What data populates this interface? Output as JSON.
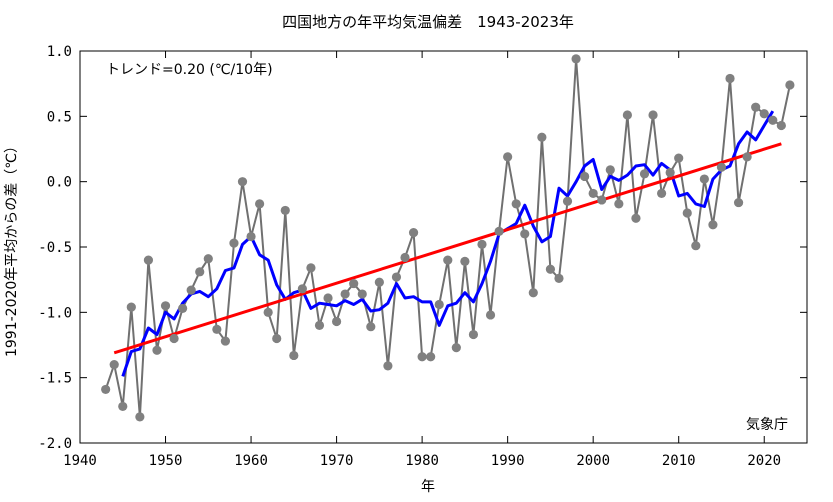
{
  "chart_data": {
    "type": "line",
    "title": "四国地方の年平均気温偏差　1943-2023年",
    "xlabel": "年",
    "ylabel": "1991-2020年平均からの差（℃）",
    "xlim": [
      1940,
      2025
    ],
    "ylim": [
      -2.0,
      1.0
    ],
    "xticks": [
      1940,
      1950,
      1960,
      1970,
      1980,
      1990,
      2000,
      2010,
      2020
    ],
    "yticks": [
      -2.0,
      -1.5,
      -1.0,
      -0.5,
      0.0,
      0.5,
      1.0
    ],
    "xtick_labels": [
      "1940",
      "1950",
      "1960",
      "1970",
      "1980",
      "1990",
      "2000",
      "2010",
      "2020"
    ],
    "ytick_labels": [
      "-2.0",
      "-1.5",
      "-1.0",
      "-0.5",
      "0.0",
      "0.5",
      "1.0"
    ],
    "grid": false,
    "trend_label": "トレンド=0.20 (℃/10年)",
    "source_label": "気象庁",
    "colors": {
      "annual": "#707070",
      "marker": "#808080",
      "moving_avg": "#0000ff",
      "trend": "#ff0000",
      "axis": "#000000"
    },
    "series": [
      {
        "key": "annual",
        "x": [
          1943,
          1944,
          1945,
          1946,
          1947,
          1948,
          1949,
          1950,
          1951,
          1952,
          1953,
          1954,
          1955,
          1956,
          1957,
          1958,
          1959,
          1960,
          1961,
          1962,
          1963,
          1964,
          1965,
          1966,
          1967,
          1968,
          1969,
          1970,
          1971,
          1972,
          1973,
          1974,
          1975,
          1976,
          1977,
          1978,
          1979,
          1980,
          1981,
          1982,
          1983,
          1984,
          1985,
          1986,
          1987,
          1988,
          1989,
          1990,
          1991,
          1992,
          1993,
          1994,
          1995,
          1996,
          1997,
          1998,
          1999,
          2000,
          2001,
          2002,
          2003,
          2004,
          2005,
          2006,
          2007,
          2008,
          2009,
          2010,
          2011,
          2012,
          2013,
          2014,
          2015,
          2016,
          2017,
          2018,
          2019,
          2020,
          2021,
          2022,
          2023
        ],
        "y": [
          -1.59,
          -1.4,
          -1.72,
          -0.96,
          -1.8,
          -0.6,
          -1.29,
          -0.95,
          -1.2,
          -0.97,
          -0.83,
          -0.69,
          -0.59,
          -1.13,
          -1.22,
          -0.47,
          0.0,
          -0.42,
          -0.17,
          -1.0,
          -1.2,
          -0.22,
          -1.33,
          -0.82,
          -0.66,
          -1.1,
          -0.89,
          -1.07,
          -0.86,
          -0.78,
          -0.86,
          -1.11,
          -0.77,
          -1.41,
          -0.73,
          -0.58,
          -0.39,
          -1.34,
          -1.34,
          -0.94,
          -0.6,
          -1.27,
          -0.61,
          -1.17,
          -0.48,
          -1.02,
          -0.38,
          0.19,
          -0.17,
          -0.4,
          -0.85,
          0.34,
          -0.67,
          -0.74,
          -0.15,
          0.94,
          0.04,
          -0.09,
          -0.14,
          0.09,
          -0.17,
          0.51,
          -0.28,
          0.06,
          0.51,
          -0.09,
          0.07,
          0.18,
          -0.24,
          -0.49,
          0.02,
          -0.33,
          0.11,
          0.79,
          -0.16,
          0.19,
          0.57,
          0.52,
          0.47,
          0.43,
          0.74
        ]
      },
      {
        "key": "moving_avg",
        "x": [
          1945,
          1946,
          1947,
          1948,
          1949,
          1950,
          1951,
          1952,
          1953,
          1954,
          1955,
          1956,
          1957,
          1958,
          1959,
          1960,
          1961,
          1962,
          1963,
          1964,
          1965,
          1966,
          1967,
          1968,
          1969,
          1970,
          1971,
          1972,
          1973,
          1974,
          1975,
          1976,
          1977,
          1978,
          1979,
          1980,
          1981,
          1982,
          1983,
          1984,
          1985,
          1986,
          1987,
          1988,
          1989,
          1990,
          1991,
          1992,
          1993,
          1994,
          1995,
          1996,
          1997,
          1998,
          1999,
          2000,
          2001,
          2002,
          2003,
          2004,
          2005,
          2006,
          2007,
          2008,
          2009,
          2010,
          2011,
          2012,
          2013,
          2014,
          2015,
          2016,
          2017,
          2018,
          2019,
          2020,
          2021
        ],
        "y": [
          -1.49,
          -1.3,
          -1.28,
          -1.12,
          -1.17,
          -1.0,
          -1.05,
          -0.93,
          -0.86,
          -0.84,
          -0.88,
          -0.82,
          -0.68,
          -0.66,
          -0.48,
          -0.42,
          -0.56,
          -0.6,
          -0.79,
          -0.9,
          -0.85,
          -0.83,
          -0.97,
          -0.93,
          -0.94,
          -0.95,
          -0.91,
          -0.94,
          -0.9,
          -0.99,
          -0.98,
          -0.93,
          -0.78,
          -0.89,
          -0.88,
          -0.92,
          -0.92,
          -1.1,
          -0.95,
          -0.93,
          -0.85,
          -0.92,
          -0.78,
          -0.61,
          -0.4,
          -0.36,
          -0.32,
          -0.18,
          -0.34,
          -0.46,
          -0.42,
          -0.05,
          -0.11,
          0.0,
          0.12,
          0.17,
          -0.06,
          0.04,
          0.01,
          0.05,
          0.12,
          0.13,
          0.05,
          0.14,
          0.09,
          -0.11,
          -0.09,
          -0.17,
          -0.19,
          0.02,
          0.09,
          0.12,
          0.29,
          0.38,
          0.32,
          0.43,
          0.54
        ]
      },
      {
        "key": "trend",
        "x": [
          1944,
          2022
        ],
        "y": [
          -1.31,
          0.29
        ]
      }
    ]
  }
}
